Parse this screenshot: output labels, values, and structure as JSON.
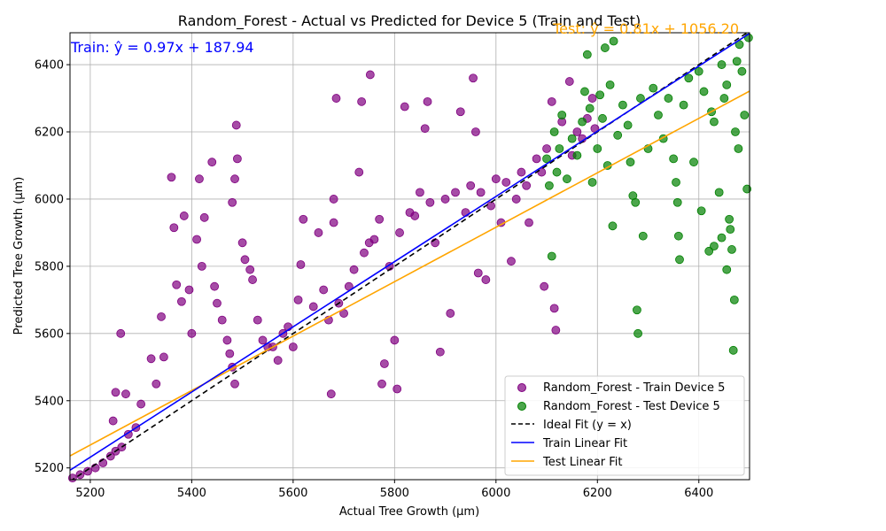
{
  "chart_data": {
    "type": "scatter",
    "title": "Random_Forest - Actual vs Predicted for Device 5 (Train and Test)",
    "xlabel": "Actual Tree Growth (µm)",
    "ylabel": "Predicted Tree Growth (µm)",
    "xlim": [
      5160,
      6500
    ],
    "ylim": [
      5165,
      6495
    ],
    "xticks": [
      5200,
      5400,
      5600,
      5800,
      6000,
      6200,
      6400
    ],
    "yticks": [
      5200,
      5400,
      5600,
      5800,
      6000,
      6200,
      6400
    ],
    "grid": true,
    "legend_position": "bottom-right",
    "train_equation": "Train: ŷ = 0.97x + 187.94",
    "test_equation": "Test: ŷ = 0.81x + 1056.20",
    "colors": {
      "train": "#800080",
      "test": "#008000",
      "ideal": "#000000",
      "train_fit": "#0000ff",
      "test_fit": "#ffa500"
    },
    "series": [
      {
        "name": "Random_Forest - Train Device 5",
        "kind": "scatter",
        "points": [
          [
            5165,
            5170
          ],
          [
            5180,
            5180
          ],
          [
            5195,
            5190
          ],
          [
            5210,
            5200
          ],
          [
            5225,
            5215
          ],
          [
            5240,
            5235
          ],
          [
            5250,
            5250
          ],
          [
            5262,
            5262
          ],
          [
            5260,
            5600
          ],
          [
            5250,
            5425
          ],
          [
            5270,
            5420
          ],
          [
            5245,
            5340
          ],
          [
            5275,
            5300
          ],
          [
            5290,
            5320
          ],
          [
            5300,
            5390
          ],
          [
            5320,
            5525
          ],
          [
            5330,
            5450
          ],
          [
            5340,
            5650
          ],
          [
            5345,
            5530
          ],
          [
            5360,
            6065
          ],
          [
            5365,
            5915
          ],
          [
            5370,
            5745
          ],
          [
            5380,
            5695
          ],
          [
            5385,
            5950
          ],
          [
            5395,
            5730
          ],
          [
            5400,
            5600
          ],
          [
            5410,
            5880
          ],
          [
            5415,
            6060
          ],
          [
            5420,
            5800
          ],
          [
            5425,
            5945
          ],
          [
            5440,
            6110
          ],
          [
            5445,
            5740
          ],
          [
            5450,
            5690
          ],
          [
            5460,
            5640
          ],
          [
            5470,
            5580
          ],
          [
            5475,
            5540
          ],
          [
            5480,
            5500
          ],
          [
            5485,
            5450
          ],
          [
            5488,
            6220
          ],
          [
            5490,
            6120
          ],
          [
            5485,
            6060
          ],
          [
            5480,
            5990
          ],
          [
            5500,
            5870
          ],
          [
            5505,
            5820
          ],
          [
            5515,
            5790
          ],
          [
            5520,
            5760
          ],
          [
            5530,
            5640
          ],
          [
            5540,
            5580
          ],
          [
            5550,
            5560
          ],
          [
            5560,
            5560
          ],
          [
            5570,
            5520
          ],
          [
            5580,
            5600
          ],
          [
            5590,
            5620
          ],
          [
            5600,
            5560
          ],
          [
            5610,
            5700
          ],
          [
            5615,
            5805
          ],
          [
            5620,
            5940
          ],
          [
            5640,
            5680
          ],
          [
            5650,
            5900
          ],
          [
            5660,
            5730
          ],
          [
            5670,
            5640
          ],
          [
            5675,
            5420
          ],
          [
            5680,
            5930
          ],
          [
            5680,
            6000
          ],
          [
            5685,
            6300
          ],
          [
            5690,
            5690
          ],
          [
            5700,
            5660
          ],
          [
            5710,
            5740
          ],
          [
            5720,
            5790
          ],
          [
            5730,
            6080
          ],
          [
            5735,
            6290
          ],
          [
            5740,
            5840
          ],
          [
            5750,
            5870
          ],
          [
            5752,
            6370
          ],
          [
            5760,
            5880
          ],
          [
            5770,
            5940
          ],
          [
            5775,
            5450
          ],
          [
            5780,
            5510
          ],
          [
            5790,
            5800
          ],
          [
            5800,
            5580
          ],
          [
            5805,
            5435
          ],
          [
            5810,
            5900
          ],
          [
            5820,
            6275
          ],
          [
            5830,
            5960
          ],
          [
            5840,
            5950
          ],
          [
            5850,
            6020
          ],
          [
            5860,
            6210
          ],
          [
            5865,
            6290
          ],
          [
            5870,
            5990
          ],
          [
            5880,
            5870
          ],
          [
            5890,
            5545
          ],
          [
            5900,
            6000
          ],
          [
            5910,
            5660
          ],
          [
            5920,
            6020
          ],
          [
            5930,
            6260
          ],
          [
            5940,
            5960
          ],
          [
            5950,
            6040
          ],
          [
            5955,
            6360
          ],
          [
            5960,
            6200
          ],
          [
            5965,
            5780
          ],
          [
            5970,
            6020
          ],
          [
            5980,
            5760
          ],
          [
            5990,
            5980
          ],
          [
            6000,
            6060
          ],
          [
            6010,
            5930
          ],
          [
            6020,
            6050
          ],
          [
            6030,
            5815
          ],
          [
            6040,
            6000
          ],
          [
            6050,
            6080
          ],
          [
            6060,
            6040
          ],
          [
            6065,
            5930
          ],
          [
            6080,
            6120
          ],
          [
            6090,
            6080
          ],
          [
            6095,
            5740
          ],
          [
            6100,
            6150
          ],
          [
            6110,
            6290
          ],
          [
            6115,
            5675
          ],
          [
            6118,
            5610
          ],
          [
            6130,
            6230
          ],
          [
            6145,
            6350
          ],
          [
            6150,
            6130
          ],
          [
            6160,
            6200
          ],
          [
            6170,
            6180
          ],
          [
            6180,
            6240
          ],
          [
            6190,
            6300
          ],
          [
            6195,
            6210
          ]
        ]
      },
      {
        "name": "Random_Forest - Test Device 5",
        "kind": "scatter",
        "points": [
          [
            6100,
            6120
          ],
          [
            6105,
            6040
          ],
          [
            6110,
            5830
          ],
          [
            6115,
            6200
          ],
          [
            6120,
            6080
          ],
          [
            6125,
            6150
          ],
          [
            6130,
            6250
          ],
          [
            6140,
            6060
          ],
          [
            6150,
            6180
          ],
          [
            6160,
            6130
          ],
          [
            6170,
            6230
          ],
          [
            6175,
            6320
          ],
          [
            6180,
            6430
          ],
          [
            6185,
            6270
          ],
          [
            6190,
            6050
          ],
          [
            6200,
            6150
          ],
          [
            6205,
            6310
          ],
          [
            6210,
            6240
          ],
          [
            6215,
            6450
          ],
          [
            6220,
            6100
          ],
          [
            6225,
            6340
          ],
          [
            6230,
            5920
          ],
          [
            6232,
            6470
          ],
          [
            6240,
            6190
          ],
          [
            6250,
            6280
          ],
          [
            6260,
            6220
          ],
          [
            6265,
            6110
          ],
          [
            6270,
            6010
          ],
          [
            6275,
            5990
          ],
          [
            6278,
            5670
          ],
          [
            6280,
            5600
          ],
          [
            6285,
            6300
          ],
          [
            6290,
            5890
          ],
          [
            6300,
            6150
          ],
          [
            6310,
            6330
          ],
          [
            6320,
            6250
          ],
          [
            6330,
            6180
          ],
          [
            6340,
            6300
          ],
          [
            6350,
            6120
          ],
          [
            6355,
            6050
          ],
          [
            6358,
            5990
          ],
          [
            6360,
            5890
          ],
          [
            6362,
            5820
          ],
          [
            6370,
            6280
          ],
          [
            6380,
            6360
          ],
          [
            6390,
            6110
          ],
          [
            6400,
            6380
          ],
          [
            6405,
            5965
          ],
          [
            6410,
            6320
          ],
          [
            6420,
            5845
          ],
          [
            6425,
            6260
          ],
          [
            6430,
            5860
          ],
          [
            6440,
            6020
          ],
          [
            6445,
            5885
          ],
          [
            6450,
            6300
          ],
          [
            6455,
            5790
          ],
          [
            6460,
            5940
          ],
          [
            6462,
            5910
          ],
          [
            6465,
            5850
          ],
          [
            6468,
            5550
          ],
          [
            6470,
            5700
          ],
          [
            6472,
            6200
          ],
          [
            6475,
            6410
          ],
          [
            6478,
            6150
          ],
          [
            6480,
            6460
          ],
          [
            6485,
            6380
          ],
          [
            6490,
            6250
          ],
          [
            6495,
            6030
          ],
          [
            6498,
            6480
          ],
          [
            6445,
            6400
          ],
          [
            6455,
            6340
          ],
          [
            6430,
            6230
          ]
        ]
      },
      {
        "name": "Ideal Fit (y = x)",
        "kind": "line",
        "slope": 1,
        "intercept": 0
      },
      {
        "name": "Train Linear Fit",
        "kind": "line",
        "slope": 0.97,
        "intercept": 187.94
      },
      {
        "name": "Test Linear Fit",
        "kind": "line",
        "slope": 0.81,
        "intercept": 1056.2
      }
    ]
  }
}
